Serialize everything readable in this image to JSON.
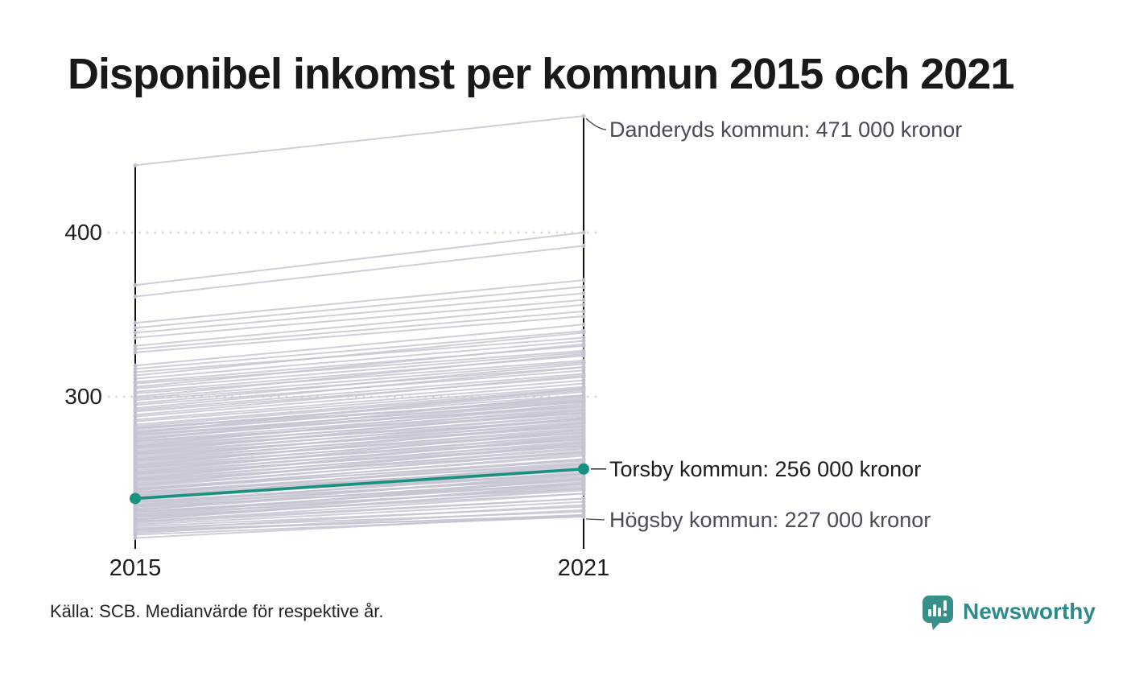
{
  "title": "Disponibel inkomst per kommun 2015 och 2021",
  "source_note": "Källa: SCB. Medianvärde för respektive år.",
  "branding": {
    "name": "Newsworthy",
    "wordmark_color": "#2e8b8b",
    "icon_color": "#37918a"
  },
  "colors": {
    "title_text": "#191919",
    "annotation_text": "#474c59",
    "highlight_annotation_text": "#1d1d1d",
    "highlight_line": "#18917f",
    "background_line": "#c5c3d1",
    "axis": "#111111",
    "gridline": "#dadada"
  },
  "chart_data": {
    "type": "line",
    "variant": "slopegraph",
    "title": "Disponibel inkomst per kommun 2015 och 2021",
    "x": [
      "2015",
      "2021"
    ],
    "y_ticks": [
      300,
      400
    ],
    "grid": "dotted-horizontal",
    "legend": "none",
    "annotations": [
      {
        "series": "Danderyds kommun",
        "label": "Danderyds kommun: 471 000 kronor",
        "value_2021": 471,
        "position": "top"
      },
      {
        "series": "Torsby kommun",
        "label": "Torsby kommun: 256 000 kronor",
        "value_2021": 256,
        "position": "middle",
        "highlighted": true
      },
      {
        "series": "Högsby kommun",
        "label": "Högsby kommun: 227 000 kronor",
        "value_2021": 227,
        "position": "bottom"
      }
    ],
    "highlight_series": {
      "name": "Torsby kommun",
      "values": [
        238,
        256
      ]
    },
    "named_series": [
      {
        "name": "Danderyds kommun",
        "values": [
          441,
          471
        ]
      },
      {
        "name": "Högsby kommun",
        "values": [
          219,
          227
        ]
      }
    ],
    "background_series": [
      [
        441,
        471
      ],
      [
        368,
        400
      ],
      [
        361,
        392
      ],
      [
        345,
        371
      ],
      [
        342,
        367
      ],
      [
        339,
        363
      ],
      [
        336,
        359
      ],
      [
        331,
        356
      ],
      [
        329,
        352
      ],
      [
        327,
        349
      ],
      [
        319,
        344
      ],
      [
        317,
        340
      ],
      [
        315,
        336
      ],
      [
        313,
        339
      ],
      [
        311,
        334
      ],
      [
        309,
        331
      ],
      [
        308,
        328
      ],
      [
        306,
        332
      ],
      [
        305,
        327
      ],
      [
        303,
        325
      ],
      [
        302,
        322
      ],
      [
        300,
        326
      ],
      [
        299,
        321
      ],
      [
        298,
        318
      ],
      [
        296,
        320
      ],
      [
        295,
        316
      ],
      [
        293,
        318
      ],
      [
        292,
        314
      ],
      [
        291,
        312
      ],
      [
        289,
        313
      ],
      [
        288,
        310
      ],
      [
        286,
        308
      ],
      [
        285,
        306
      ],
      [
        283,
        305
      ],
      [
        282,
        304
      ],
      [
        281,
        301
      ],
      [
        280,
        303
      ],
      [
        279,
        299
      ],
      [
        278,
        300
      ],
      [
        277,
        297
      ],
      [
        276,
        298
      ],
      [
        275,
        295
      ],
      [
        274,
        297
      ],
      [
        273,
        294
      ],
      [
        272,
        292
      ],
      [
        271,
        293
      ],
      [
        270,
        290
      ],
      [
        269,
        291
      ],
      [
        268,
        288
      ],
      [
        267,
        289
      ],
      [
        266,
        286
      ],
      [
        265,
        287
      ],
      [
        264,
        284
      ],
      [
        263,
        285
      ],
      [
        262,
        282
      ],
      [
        261,
        283
      ],
      [
        260,
        280
      ],
      [
        259,
        281
      ],
      [
        258,
        278
      ],
      [
        257,
        279
      ],
      [
        256,
        276
      ],
      [
        255,
        277
      ],
      [
        254,
        274
      ],
      [
        253,
        275
      ],
      [
        252,
        272
      ],
      [
        251,
        273
      ],
      [
        250,
        270
      ],
      [
        249,
        271
      ],
      [
        248,
        268
      ],
      [
        247,
        269
      ],
      [
        246,
        266
      ],
      [
        245,
        267
      ],
      [
        244,
        264
      ],
      [
        262,
        287
      ],
      [
        258,
        284
      ],
      [
        254,
        280
      ],
      [
        250,
        276
      ],
      [
        246,
        272
      ],
      [
        266,
        292
      ],
      [
        270,
        296
      ],
      [
        274,
        301
      ],
      [
        278,
        305
      ],
      [
        249,
        266
      ],
      [
        253,
        270
      ],
      [
        257,
        274
      ],
      [
        261,
        278
      ],
      [
        265,
        282
      ],
      [
        269,
        286
      ],
      [
        273,
        290
      ],
      [
        277,
        294
      ],
      [
        281,
        298
      ],
      [
        244,
        261
      ],
      [
        243,
        262
      ],
      [
        242,
        259
      ],
      [
        241,
        260
      ],
      [
        240,
        257
      ],
      [
        239,
        258
      ],
      [
        238,
        255
      ],
      [
        237,
        256
      ],
      [
        236,
        253
      ],
      [
        235,
        254
      ],
      [
        234,
        251
      ],
      [
        233,
        252
      ],
      [
        232,
        249
      ],
      [
        231,
        250
      ],
      [
        230,
        247
      ],
      [
        229,
        248
      ],
      [
        228,
        245
      ],
      [
        227,
        246
      ],
      [
        226,
        243
      ],
      [
        225,
        244
      ],
      [
        224,
        241
      ],
      [
        243,
        265
      ],
      [
        240,
        262
      ],
      [
        237,
        259
      ],
      [
        234,
        256
      ],
      [
        231,
        253
      ],
      [
        228,
        250
      ],
      [
        225,
        247
      ],
      [
        242,
        256
      ],
      [
        239,
        253
      ],
      [
        236,
        250
      ],
      [
        233,
        247
      ],
      [
        230,
        244
      ],
      [
        227,
        241
      ],
      [
        224,
        238
      ],
      [
        223,
        238
      ],
      [
        222,
        236
      ],
      [
        221,
        233
      ],
      [
        220,
        230
      ],
      [
        219,
        234
      ],
      [
        218,
        228
      ],
      [
        217,
        231
      ],
      [
        216,
        227
      ],
      [
        219,
        227
      ],
      [
        214,
        228
      ]
    ]
  }
}
